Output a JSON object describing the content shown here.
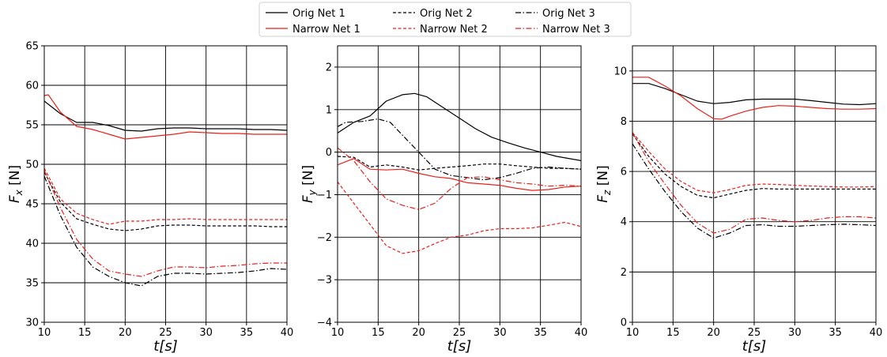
{
  "legend": {
    "placement": "top-center",
    "entries": [
      {
        "label": "Orig Net 1",
        "color": "#000000",
        "dash": "solid"
      },
      {
        "label": "Orig Net 2",
        "color": "#000000",
        "dash": "dashed"
      },
      {
        "label": "Orig Net 3",
        "color": "#000000",
        "dash": "dashdot"
      },
      {
        "label": "Narrow Net 1",
        "color": "#e8211c",
        "dash": "solid"
      },
      {
        "label": "Narrow Net 2",
        "color": "#e8211c",
        "dash": "dashed"
      },
      {
        "label": "Narrow Net 3",
        "color": "#e8211c",
        "dash": "dashdot"
      }
    ]
  },
  "chart_data": [
    {
      "type": "line",
      "xlabel": "t[s]",
      "ylabel": "F_x [N]",
      "ylabel_main": "F",
      "ylabel_sub": "x",
      "ylabel_unit": " [N]",
      "xlim": [
        10,
        40
      ],
      "ylim": [
        30,
        65
      ],
      "xticks": [
        10,
        15,
        20,
        25,
        30,
        35,
        40
      ],
      "yticks": [
        30,
        35,
        40,
        45,
        50,
        55,
        60,
        65
      ],
      "grid": true,
      "series": [
        {
          "name": "Orig Net 1",
          "color": "#000000",
          "dash": "solid",
          "x": [
            10,
            12,
            14,
            16,
            18,
            20,
            22,
            24,
            26,
            28,
            30,
            32,
            34,
            36,
            38,
            40
          ],
          "y": [
            58.0,
            56.4,
            55.3,
            55.3,
            54.9,
            54.3,
            54.2,
            54.5,
            54.6,
            54.6,
            54.5,
            54.5,
            54.5,
            54.4,
            54.4,
            54.3
          ]
        },
        {
          "name": "Narrow Net 1",
          "color": "#e8211c",
          "dash": "solid",
          "x": [
            10,
            10.5,
            12,
            14,
            16,
            18,
            20,
            22,
            24,
            26,
            28,
            30,
            32,
            34,
            36,
            38,
            40
          ],
          "y": [
            58.7,
            58.8,
            56.6,
            54.8,
            54.4,
            53.8,
            53.2,
            53.4,
            53.6,
            53.8,
            54.1,
            54.0,
            53.9,
            53.9,
            53.8,
            53.8,
            53.8
          ]
        },
        {
          "name": "Orig Net 2",
          "color": "#000000",
          "dash": "dashed",
          "x": [
            10,
            12,
            14,
            16,
            18,
            20,
            22,
            24,
            26,
            28,
            30,
            32,
            34,
            36,
            38,
            40
          ],
          "y": [
            49.0,
            45.2,
            43.1,
            42.4,
            41.8,
            41.6,
            41.8,
            42.2,
            42.3,
            42.3,
            42.2,
            42.2,
            42.2,
            42.2,
            42.1,
            42.1
          ]
        },
        {
          "name": "Narrow Net 2",
          "color": "#e8211c",
          "dash": "dashed",
          "x": [
            10,
            12,
            14,
            16,
            18,
            20,
            22,
            24,
            26,
            28,
            30,
            32,
            34,
            36,
            38,
            40
          ],
          "y": [
            49.5,
            45.6,
            43.8,
            43.0,
            42.4,
            42.8,
            42.8,
            43.0,
            43.0,
            43.1,
            43.0,
            43.0,
            43.0,
            43.0,
            43.0,
            43.0
          ]
        },
        {
          "name": "Orig Net 3",
          "color": "#000000",
          "dash": "dashdot",
          "x": [
            10,
            12,
            14,
            16,
            18,
            20,
            22,
            24,
            26,
            28,
            30,
            32,
            34,
            36,
            38,
            40
          ],
          "y": [
            48.5,
            43.5,
            39.5,
            37.0,
            35.8,
            35.0,
            34.6,
            35.8,
            36.2,
            36.2,
            36.1,
            36.2,
            36.3,
            36.5,
            36.8,
            36.7
          ]
        },
        {
          "name": "Narrow Net 3",
          "color": "#e8211c",
          "dash": "dashdot",
          "x": [
            10,
            12,
            14,
            16,
            18,
            20,
            22,
            24,
            26,
            28,
            30,
            32,
            34,
            36,
            38,
            40
          ],
          "y": [
            49.2,
            44.5,
            40.5,
            38.0,
            36.5,
            36.1,
            35.8,
            36.5,
            37.0,
            37.0,
            36.9,
            37.1,
            37.2,
            37.4,
            37.5,
            37.5
          ]
        }
      ]
    },
    {
      "type": "line",
      "xlabel": "t[s]",
      "ylabel": "F_y [N]",
      "ylabel_main": "F",
      "ylabel_sub": "y",
      "ylabel_unit": " [N]",
      "xlim": [
        10,
        40
      ],
      "ylim": [
        -4,
        2.5
      ],
      "xticks": [
        10,
        15,
        20,
        25,
        30,
        35,
        40
      ],
      "yticks": [
        -4,
        -3,
        -2,
        -1,
        0,
        1,
        2
      ],
      "grid": true,
      "series": [
        {
          "name": "Orig Net 1",
          "color": "#000000",
          "dash": "solid",
          "x": [
            10,
            12,
            14,
            16,
            18,
            19.5,
            21,
            23,
            25,
            27,
            29,
            31,
            33,
            35,
            37,
            40
          ],
          "y": [
            0.45,
            0.7,
            0.85,
            1.2,
            1.35,
            1.38,
            1.3,
            1.05,
            0.8,
            0.55,
            0.35,
            0.22,
            0.1,
            0.0,
            -0.1,
            -0.2
          ]
        },
        {
          "name": "Narrow Net 1",
          "color": "#e8211c",
          "dash": "solid",
          "x": [
            10,
            12,
            14,
            16,
            18,
            20,
            22,
            24,
            26,
            28,
            30,
            32,
            34,
            36,
            38,
            40
          ],
          "y": [
            -0.3,
            -0.15,
            -0.4,
            -0.42,
            -0.4,
            -0.5,
            -0.58,
            -0.62,
            -0.72,
            -0.75,
            -0.78,
            -0.85,
            -0.9,
            -0.88,
            -0.82,
            -0.8
          ]
        },
        {
          "name": "Orig Net 2",
          "color": "#000000",
          "dash": "dashed",
          "x": [
            10,
            12,
            14,
            16,
            18,
            20,
            22,
            24,
            26,
            28,
            30,
            32,
            34,
            36,
            38,
            40
          ],
          "y": [
            -0.1,
            -0.12,
            -0.35,
            -0.3,
            -0.35,
            -0.42,
            -0.38,
            -0.35,
            -0.32,
            -0.28,
            -0.28,
            -0.32,
            -0.35,
            -0.38,
            -0.38,
            -0.4
          ]
        },
        {
          "name": "Narrow Net 2",
          "color": "#e8211c",
          "dash": "dashed",
          "x": [
            10,
            12,
            14,
            16,
            18,
            20,
            22,
            24,
            26,
            28,
            30,
            32,
            34,
            36,
            38,
            40
          ],
          "y": [
            -0.7,
            -1.2,
            -1.7,
            -2.2,
            -2.38,
            -2.32,
            -2.15,
            -2.0,
            -1.95,
            -1.85,
            -1.8,
            -1.8,
            -1.78,
            -1.72,
            -1.65,
            -1.75
          ]
        },
        {
          "name": "Orig Net 3",
          "color": "#000000",
          "dash": "dashdot",
          "x": [
            10,
            11,
            13,
            15,
            16.5,
            18,
            20,
            22,
            24,
            26,
            28,
            30,
            32,
            34,
            36,
            38,
            40
          ],
          "y": [
            0.6,
            0.7,
            0.72,
            0.78,
            0.7,
            0.4,
            0.0,
            -0.4,
            -0.55,
            -0.6,
            -0.65,
            -0.6,
            -0.5,
            -0.38,
            -0.35,
            -0.38,
            -0.4
          ]
        },
        {
          "name": "Narrow Net 3",
          "color": "#e8211c",
          "dash": "dashdot",
          "x": [
            10,
            12,
            14,
            16,
            18,
            20,
            22,
            24,
            26,
            28,
            30,
            32,
            34,
            36,
            38,
            40
          ],
          "y": [
            0.1,
            -0.2,
            -0.7,
            -1.1,
            -1.25,
            -1.35,
            -1.2,
            -0.85,
            -0.6,
            -0.58,
            -0.65,
            -0.72,
            -0.75,
            -0.8,
            -0.78,
            -0.8
          ]
        }
      ]
    },
    {
      "type": "line",
      "xlabel": "t[s]",
      "ylabel": "F_z [N]",
      "ylabel_main": "F",
      "ylabel_sub": "z",
      "ylabel_unit": " [N]",
      "xlim": [
        10,
        40
      ],
      "ylim": [
        0,
        11
      ],
      "xticks": [
        10,
        15,
        20,
        25,
        30,
        35,
        40
      ],
      "yticks": [
        0,
        2,
        4,
        6,
        8,
        10
      ],
      "grid": true,
      "series": [
        {
          "name": "Orig Net 1",
          "color": "#000000",
          "dash": "solid",
          "x": [
            10,
            12,
            14,
            16,
            18,
            20,
            22,
            24,
            26,
            28,
            30,
            32,
            34,
            36,
            38,
            40
          ],
          "y": [
            9.5,
            9.5,
            9.3,
            9.05,
            8.8,
            8.7,
            8.75,
            8.85,
            8.88,
            8.88,
            8.88,
            8.82,
            8.75,
            8.68,
            8.66,
            8.7
          ]
        },
        {
          "name": "Narrow Net 1",
          "color": "#e8211c",
          "dash": "solid",
          "x": [
            10,
            12,
            14,
            16,
            18,
            20,
            21,
            22,
            24,
            26,
            28,
            30,
            32,
            34,
            36,
            38,
            40
          ],
          "y": [
            9.75,
            9.75,
            9.4,
            9.0,
            8.5,
            8.1,
            8.08,
            8.2,
            8.4,
            8.55,
            8.62,
            8.6,
            8.55,
            8.5,
            8.48,
            8.48,
            8.5
          ]
        },
        {
          "name": "Orig Net 2",
          "color": "#000000",
          "dash": "dashed",
          "x": [
            10,
            12,
            14,
            16,
            18,
            20,
            22,
            24,
            26,
            28,
            30,
            32,
            34,
            36,
            38,
            40
          ],
          "y": [
            7.5,
            6.6,
            5.9,
            5.4,
            5.05,
            4.95,
            5.1,
            5.25,
            5.32,
            5.3,
            5.3,
            5.3,
            5.3,
            5.3,
            5.3,
            5.3
          ]
        },
        {
          "name": "Narrow Net 2",
          "color": "#e8211c",
          "dash": "dashed",
          "x": [
            10,
            12,
            14,
            16,
            18,
            20,
            22,
            24,
            26,
            28,
            30,
            32,
            34,
            36,
            38,
            40
          ],
          "y": [
            7.55,
            6.8,
            6.1,
            5.6,
            5.25,
            5.15,
            5.28,
            5.45,
            5.5,
            5.48,
            5.45,
            5.42,
            5.4,
            5.38,
            5.38,
            5.4
          ]
        },
        {
          "name": "Orig Net 3",
          "color": "#000000",
          "dash": "dashdot",
          "x": [
            10,
            12,
            14,
            16,
            18,
            20,
            22,
            24,
            26,
            28,
            30,
            32,
            34,
            36,
            38,
            40
          ],
          "y": [
            7.1,
            6.1,
            5.2,
            4.4,
            3.75,
            3.35,
            3.55,
            3.85,
            3.88,
            3.82,
            3.82,
            3.85,
            3.88,
            3.9,
            3.88,
            3.85
          ]
        },
        {
          "name": "Narrow Net 3",
          "color": "#e8211c",
          "dash": "dashdot",
          "x": [
            10,
            12,
            14,
            16,
            18,
            20,
            22,
            24,
            26,
            28,
            30,
            32,
            34,
            36,
            38,
            40
          ],
          "y": [
            7.55,
            6.4,
            5.5,
            4.65,
            3.95,
            3.55,
            3.7,
            4.1,
            4.15,
            4.05,
            4.0,
            4.05,
            4.15,
            4.2,
            4.2,
            4.15
          ]
        }
      ]
    }
  ]
}
